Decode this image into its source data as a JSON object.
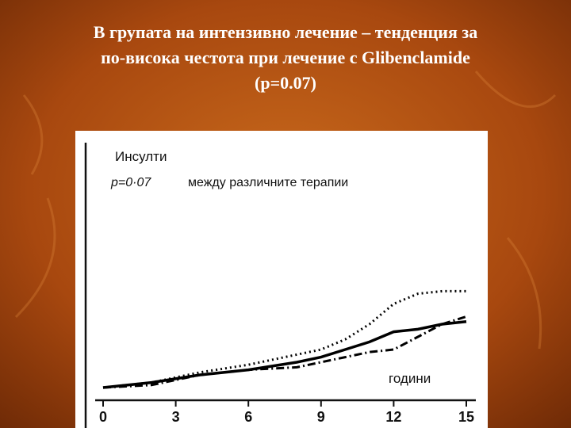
{
  "slide": {
    "title_lines": [
      "В групата на интензивно лечение – тенденция за",
      "по-висока честота при лечение с Glibenclamide",
      "(p=0.07)"
    ]
  },
  "chart_data": {
    "type": "line",
    "annotations": [
      "Инсулти",
      "p=0·07",
      "между различните терапии"
    ],
    "x_label": "години",
    "x": [
      0,
      2,
      4,
      6,
      8,
      9,
      10,
      11,
      12,
      13,
      14,
      15
    ],
    "series": [
      {
        "color": "#000000",
        "style": "solid",
        "values": [
          5,
          7,
          10,
          12,
          15,
          17,
          20,
          23,
          27,
          28,
          30,
          31
        ]
      },
      {
        "color": "#000000",
        "style": "dotted",
        "values": [
          5,
          7,
          11,
          14,
          18,
          20,
          24,
          30,
          38,
          42,
          43,
          43
        ]
      },
      {
        "color": "#000000",
        "style": "dashdot",
        "values": [
          5,
          6,
          10,
          12,
          13,
          15,
          17,
          19,
          20,
          25,
          30,
          33
        ]
      }
    ],
    "xlim": [
      0,
      15
    ],
    "xticks": [
      0,
      3,
      6,
      9,
      12,
      15
    ],
    "ylim": [
      0,
      100
    ]
  }
}
